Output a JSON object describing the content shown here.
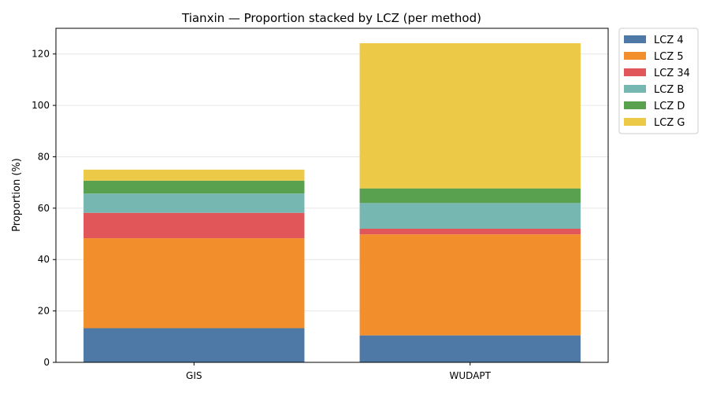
{
  "chart_data": {
    "type": "bar",
    "stacked": true,
    "title": "Tianxin — Proportion stacked by LCZ (per method)",
    "xlabel": "",
    "ylabel": "Proportion (%)",
    "categories": [
      "GIS",
      "WUDAPT"
    ],
    "ylim": [
      0,
      130
    ],
    "yticks": [
      0,
      20,
      40,
      60,
      80,
      100,
      120
    ],
    "grid": "horizontal",
    "legend_position": "outside-top-right",
    "series": [
      {
        "name": "LCZ 4",
        "color": "#4e79a7",
        "values": [
          13.3,
          10.5
        ]
      },
      {
        "name": "LCZ 5",
        "color": "#f28e2b",
        "values": [
          35.0,
          39.3
        ]
      },
      {
        "name": "LCZ 34",
        "color": "#e15759",
        "values": [
          9.9,
          2.2
        ]
      },
      {
        "name": "LCZ B",
        "color": "#76b7b2",
        "values": [
          7.5,
          10.0
        ]
      },
      {
        "name": "LCZ D",
        "color": "#59a14f",
        "values": [
          5.0,
          5.7
        ]
      },
      {
        "name": "LCZ G",
        "color": "#edc948",
        "values": [
          4.3,
          56.5
        ]
      }
    ]
  }
}
